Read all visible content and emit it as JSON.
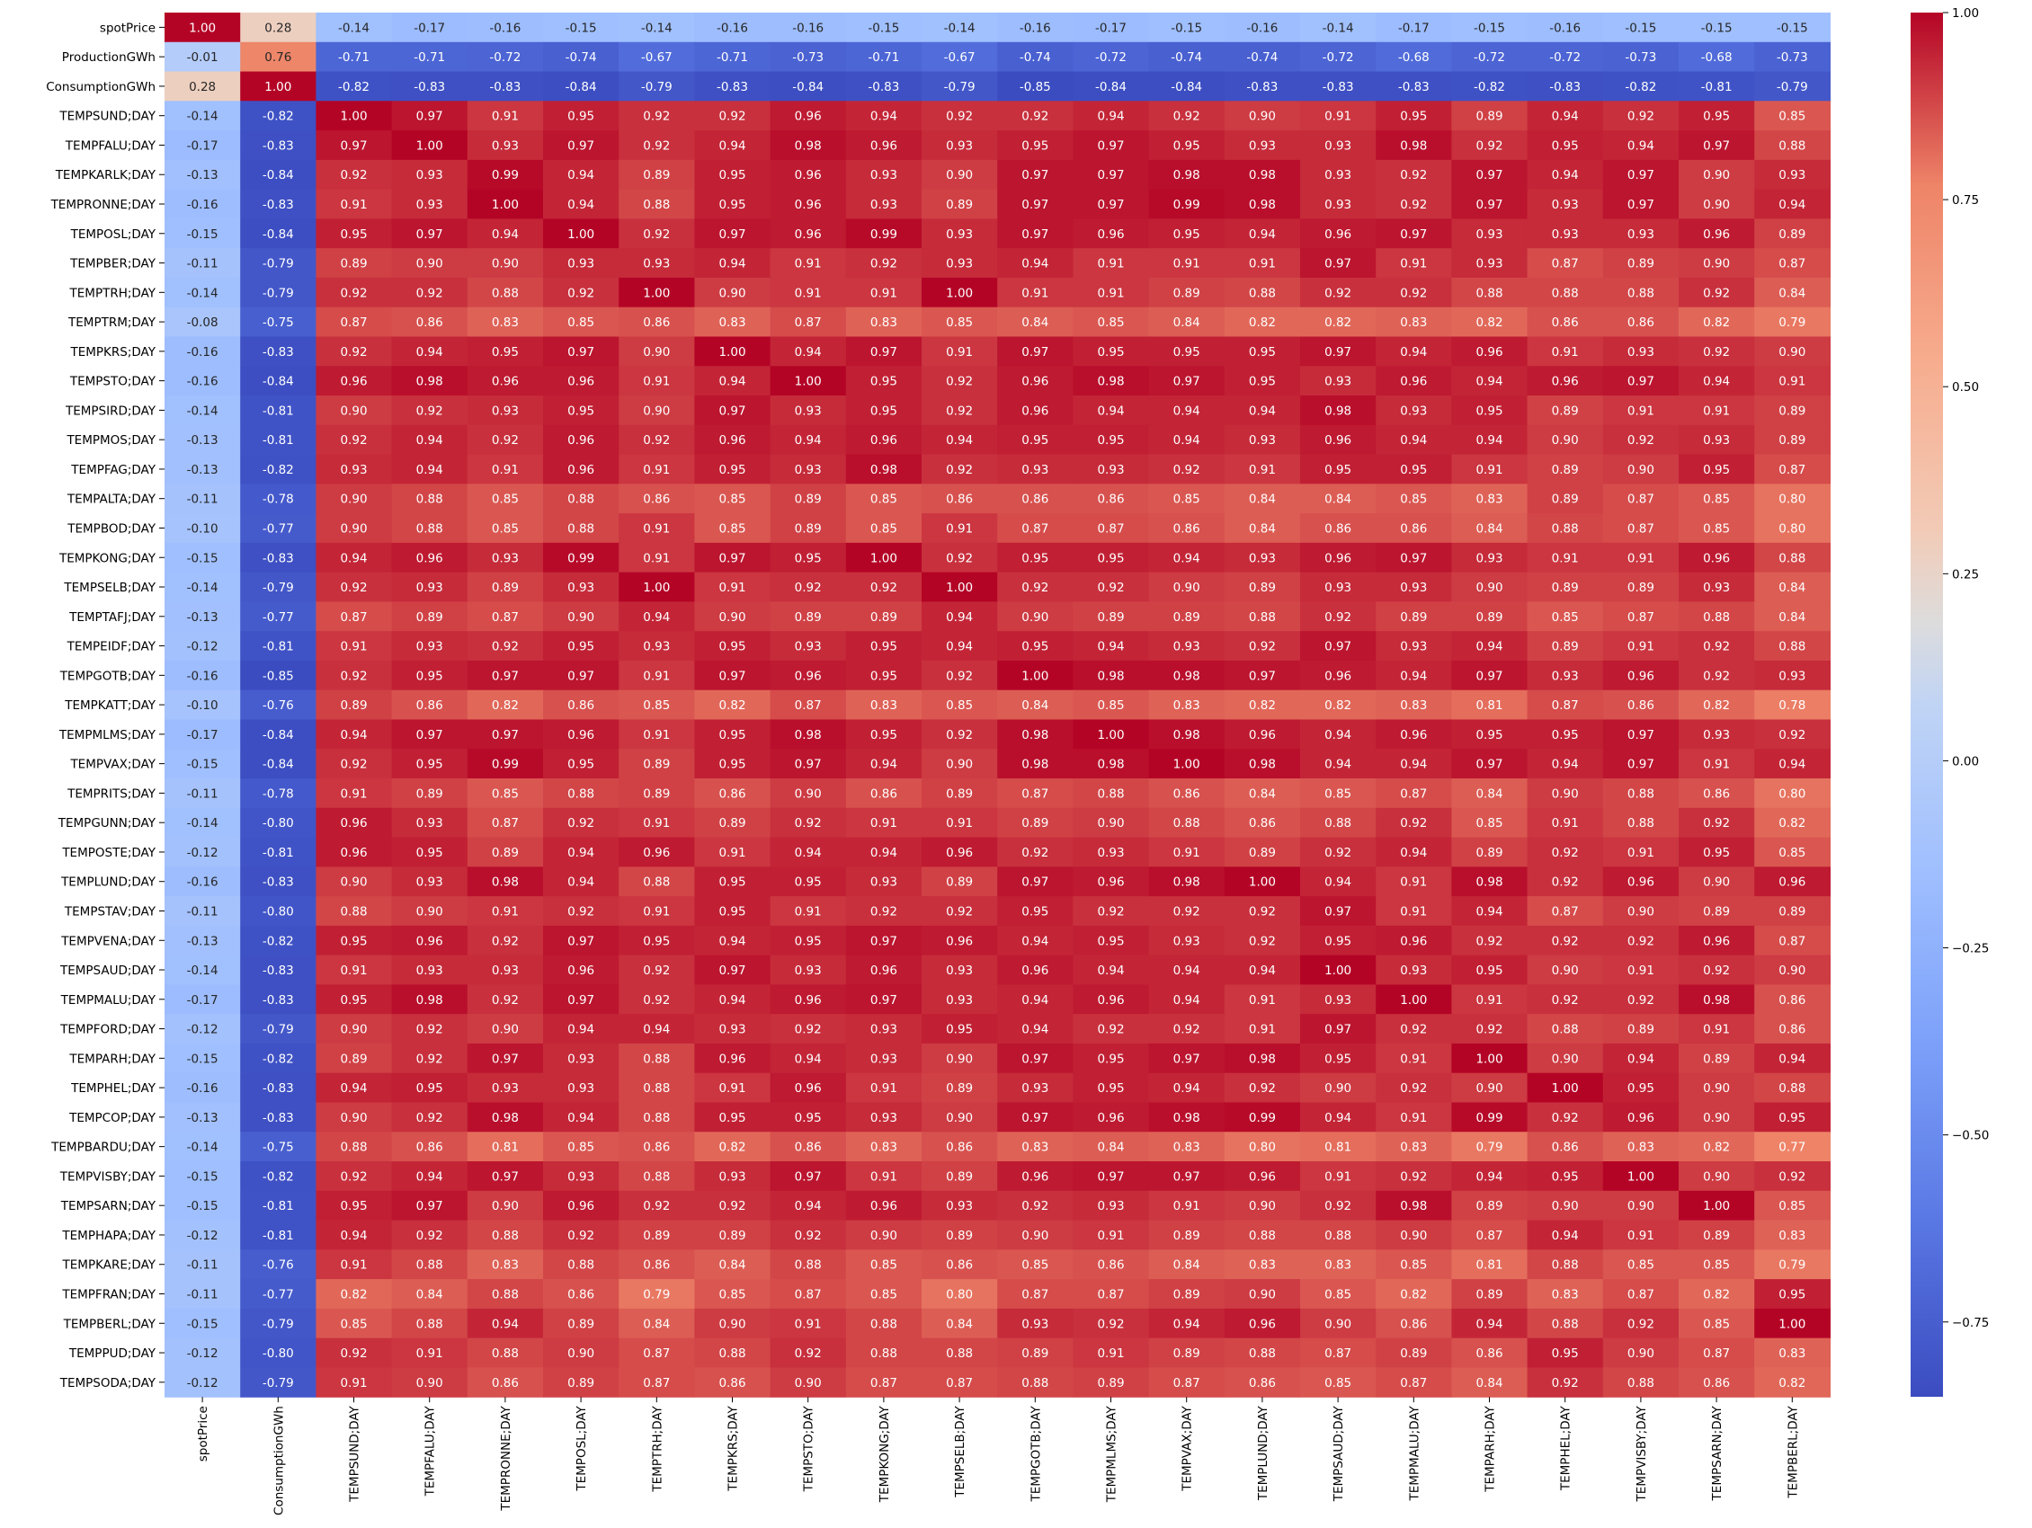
{
  "chart_data": {
    "type": "heatmap",
    "title": "",
    "xlabel": "",
    "ylabel": "",
    "colormap": "coolwarm",
    "vmin": -0.85,
    "vmax": 1.0,
    "colorbar_ticks": [
      1.0,
      0.75,
      0.5,
      0.25,
      0.0,
      -0.25,
      -0.5,
      -0.75
    ],
    "colorbar_tick_labels": [
      "1.00",
      "0.75",
      "0.50",
      "0.25",
      "0.00",
      "−0.25",
      "−0.50",
      "−0.75"
    ],
    "rows": [
      "spotPrice",
      "ProductionGWh",
      "ConsumptionGWh",
      "TEMPSUND;DAY",
      "TEMPFALU;DAY",
      "TEMPKARLK;DAY",
      "TEMPRONNE;DAY",
      "TEMPOSL;DAY",
      "TEMPBER;DAY",
      "TEMPTRH;DAY",
      "TEMPTRM;DAY",
      "TEMPKRS;DAY",
      "TEMPSTO;DAY",
      "TEMPSIRD;DAY",
      "TEMPMOS;DAY",
      "TEMPFAG;DAY",
      "TEMPALTA;DAY",
      "TEMPBOD;DAY",
      "TEMPKONG;DAY",
      "TEMPSELB;DAY",
      "TEMPTAFJ;DAY",
      "TEMPEIDF;DAY",
      "TEMPGOTB;DAY",
      "TEMPKATT;DAY",
      "TEMPMLMS;DAY",
      "TEMPVAX;DAY",
      "TEMPRITS;DAY",
      "TEMPGUNN;DAY",
      "TEMPOSTE;DAY",
      "TEMPLUND;DAY",
      "TEMPSTAV;DAY",
      "TEMPVENA;DAY",
      "TEMPSAUD;DAY",
      "TEMPMALU;DAY",
      "TEMPFORD;DAY",
      "TEMPARH;DAY",
      "TEMPHEL;DAY",
      "TEMPCOP;DAY",
      "TEMPBARDU;DAY",
      "TEMPVISBY;DAY",
      "TEMPSARN;DAY",
      "TEMPHAPA;DAY",
      "TEMPKARE;DAY",
      "TEMPFRAN;DAY",
      "TEMPBERL;DAY",
      "TEMPPUD;DAY",
      "TEMPSODA;DAY"
    ],
    "columns": [
      "spotPrice",
      "ConsumptionGWh",
      "TEMPSUND;DAY",
      "TEMPFALU;DAY",
      "TEMPRONNE;DAY",
      "TEMPOSL;DAY",
      "TEMPTRH;DAY",
      "TEMPKRS;DAY",
      "TEMPSTO;DAY",
      "TEMPKONG;DAY",
      "TEMPSELB;DAY",
      "TEMPGOTB;DAY",
      "TEMPMLMS;DAY",
      "TEMPVAX;DAY",
      "TEMPLUND;DAY",
      "TEMPSAUD;DAY",
      "TEMPMALU;DAY",
      "TEMPARH;DAY",
      "TEMPHEL;DAY",
      "TEMPVISBY;DAY",
      "TEMPSARN;DAY",
      "TEMPBERL;DAY"
    ],
    "values": [
      [
        1.0,
        0.28,
        -0.14,
        -0.17,
        -0.16,
        -0.15,
        -0.14,
        -0.16,
        -0.16,
        -0.15,
        -0.14,
        -0.16,
        -0.17,
        -0.15,
        -0.16,
        -0.14,
        -0.17,
        -0.15,
        -0.16,
        -0.15,
        -0.15,
        -0.15
      ],
      [
        -0.01,
        0.76,
        -0.71,
        -0.71,
        -0.72,
        -0.74,
        -0.67,
        -0.71,
        -0.73,
        -0.71,
        -0.67,
        -0.74,
        -0.72,
        -0.74,
        -0.74,
        -0.72,
        -0.68,
        -0.72,
        -0.72,
        -0.73,
        -0.68,
        -0.73
      ],
      [
        0.28,
        1.0,
        -0.82,
        -0.83,
        -0.83,
        -0.84,
        -0.79,
        -0.83,
        -0.84,
        -0.83,
        -0.79,
        -0.85,
        -0.84,
        -0.84,
        -0.83,
        -0.83,
        -0.83,
        -0.82,
        -0.83,
        -0.82,
        -0.81,
        -0.79
      ],
      [
        -0.14,
        -0.82,
        1.0,
        0.97,
        0.91,
        0.95,
        0.92,
        0.92,
        0.96,
        0.94,
        0.92,
        0.92,
        0.94,
        0.92,
        0.9,
        0.91,
        0.95,
        0.89,
        0.94,
        0.92,
        0.95,
        0.85
      ],
      [
        -0.17,
        -0.83,
        0.97,
        1.0,
        0.93,
        0.97,
        0.92,
        0.94,
        0.98,
        0.96,
        0.93,
        0.95,
        0.97,
        0.95,
        0.93,
        0.93,
        0.98,
        0.92,
        0.95,
        0.94,
        0.97,
        0.88
      ],
      [
        -0.13,
        -0.84,
        0.92,
        0.93,
        0.99,
        0.94,
        0.89,
        0.95,
        0.96,
        0.93,
        0.9,
        0.97,
        0.97,
        0.98,
        0.98,
        0.93,
        0.92,
        0.97,
        0.94,
        0.97,
        0.9,
        0.93
      ],
      [
        -0.16,
        -0.83,
        0.91,
        0.93,
        1.0,
        0.94,
        0.88,
        0.95,
        0.96,
        0.93,
        0.89,
        0.97,
        0.97,
        0.99,
        0.98,
        0.93,
        0.92,
        0.97,
        0.93,
        0.97,
        0.9,
        0.94
      ],
      [
        -0.15,
        -0.84,
        0.95,
        0.97,
        0.94,
        1.0,
        0.92,
        0.97,
        0.96,
        0.99,
        0.93,
        0.97,
        0.96,
        0.95,
        0.94,
        0.96,
        0.97,
        0.93,
        0.93,
        0.93,
        0.96,
        0.89
      ],
      [
        -0.11,
        -0.79,
        0.89,
        0.9,
        0.9,
        0.93,
        0.93,
        0.94,
        0.91,
        0.92,
        0.93,
        0.94,
        0.91,
        0.91,
        0.91,
        0.97,
        0.91,
        0.93,
        0.87,
        0.89,
        0.9,
        0.87
      ],
      [
        -0.14,
        -0.79,
        0.92,
        0.92,
        0.88,
        0.92,
        1.0,
        0.9,
        0.91,
        0.91,
        1.0,
        0.91,
        0.91,
        0.89,
        0.88,
        0.92,
        0.92,
        0.88,
        0.88,
        0.88,
        0.92,
        0.84
      ],
      [
        -0.08,
        -0.75,
        0.87,
        0.86,
        0.83,
        0.85,
        0.86,
        0.83,
        0.87,
        0.83,
        0.85,
        0.84,
        0.85,
        0.84,
        0.82,
        0.82,
        0.83,
        0.82,
        0.86,
        0.86,
        0.82,
        0.79
      ],
      [
        -0.16,
        -0.83,
        0.92,
        0.94,
        0.95,
        0.97,
        0.9,
        1.0,
        0.94,
        0.97,
        0.91,
        0.97,
        0.95,
        0.95,
        0.95,
        0.97,
        0.94,
        0.96,
        0.91,
        0.93,
        0.92,
        0.9
      ],
      [
        -0.16,
        -0.84,
        0.96,
        0.98,
        0.96,
        0.96,
        0.91,
        0.94,
        1.0,
        0.95,
        0.92,
        0.96,
        0.98,
        0.97,
        0.95,
        0.93,
        0.96,
        0.94,
        0.96,
        0.97,
        0.94,
        0.91
      ],
      [
        -0.14,
        -0.81,
        0.9,
        0.92,
        0.93,
        0.95,
        0.9,
        0.97,
        0.93,
        0.95,
        0.92,
        0.96,
        0.94,
        0.94,
        0.94,
        0.98,
        0.93,
        0.95,
        0.89,
        0.91,
        0.91,
        0.89
      ],
      [
        -0.13,
        -0.81,
        0.92,
        0.94,
        0.92,
        0.96,
        0.92,
        0.96,
        0.94,
        0.96,
        0.94,
        0.95,
        0.95,
        0.94,
        0.93,
        0.96,
        0.94,
        0.94,
        0.9,
        0.92,
        0.93,
        0.89
      ],
      [
        -0.13,
        -0.82,
        0.93,
        0.94,
        0.91,
        0.96,
        0.91,
        0.95,
        0.93,
        0.98,
        0.92,
        0.93,
        0.93,
        0.92,
        0.91,
        0.95,
        0.95,
        0.91,
        0.89,
        0.9,
        0.95,
        0.87
      ],
      [
        -0.11,
        -0.78,
        0.9,
        0.88,
        0.85,
        0.88,
        0.86,
        0.85,
        0.89,
        0.85,
        0.86,
        0.86,
        0.86,
        0.85,
        0.84,
        0.84,
        0.85,
        0.83,
        0.89,
        0.87,
        0.85,
        0.8
      ],
      [
        -0.1,
        -0.77,
        0.9,
        0.88,
        0.85,
        0.88,
        0.91,
        0.85,
        0.89,
        0.85,
        0.91,
        0.87,
        0.87,
        0.86,
        0.84,
        0.86,
        0.86,
        0.84,
        0.88,
        0.87,
        0.85,
        0.8
      ],
      [
        -0.15,
        -0.83,
        0.94,
        0.96,
        0.93,
        0.99,
        0.91,
        0.97,
        0.95,
        1.0,
        0.92,
        0.95,
        0.95,
        0.94,
        0.93,
        0.96,
        0.97,
        0.93,
        0.91,
        0.91,
        0.96,
        0.88
      ],
      [
        -0.14,
        -0.79,
        0.92,
        0.93,
        0.89,
        0.93,
        1.0,
        0.91,
        0.92,
        0.92,
        1.0,
        0.92,
        0.92,
        0.9,
        0.89,
        0.93,
        0.93,
        0.9,
        0.89,
        0.89,
        0.93,
        0.84
      ],
      [
        -0.13,
        -0.77,
        0.87,
        0.89,
        0.87,
        0.9,
        0.94,
        0.9,
        0.89,
        0.89,
        0.94,
        0.9,
        0.89,
        0.89,
        0.88,
        0.92,
        0.89,
        0.89,
        0.85,
        0.87,
        0.88,
        0.84
      ],
      [
        -0.12,
        -0.81,
        0.91,
        0.93,
        0.92,
        0.95,
        0.93,
        0.95,
        0.93,
        0.95,
        0.94,
        0.95,
        0.94,
        0.93,
        0.92,
        0.97,
        0.93,
        0.94,
        0.89,
        0.91,
        0.92,
        0.88
      ],
      [
        -0.16,
        -0.85,
        0.92,
        0.95,
        0.97,
        0.97,
        0.91,
        0.97,
        0.96,
        0.95,
        0.92,
        1.0,
        0.98,
        0.98,
        0.97,
        0.96,
        0.94,
        0.97,
        0.93,
        0.96,
        0.92,
        0.93
      ],
      [
        -0.1,
        -0.76,
        0.89,
        0.86,
        0.82,
        0.86,
        0.85,
        0.82,
        0.87,
        0.83,
        0.85,
        0.84,
        0.85,
        0.83,
        0.82,
        0.82,
        0.83,
        0.81,
        0.87,
        0.86,
        0.82,
        0.78
      ],
      [
        -0.17,
        -0.84,
        0.94,
        0.97,
        0.97,
        0.96,
        0.91,
        0.95,
        0.98,
        0.95,
        0.92,
        0.98,
        1.0,
        0.98,
        0.96,
        0.94,
        0.96,
        0.95,
        0.95,
        0.97,
        0.93,
        0.92
      ],
      [
        -0.15,
        -0.84,
        0.92,
        0.95,
        0.99,
        0.95,
        0.89,
        0.95,
        0.97,
        0.94,
        0.9,
        0.98,
        0.98,
        1.0,
        0.98,
        0.94,
        0.94,
        0.97,
        0.94,
        0.97,
        0.91,
        0.94
      ],
      [
        -0.11,
        -0.78,
        0.91,
        0.89,
        0.85,
        0.88,
        0.89,
        0.86,
        0.9,
        0.86,
        0.89,
        0.87,
        0.88,
        0.86,
        0.84,
        0.85,
        0.87,
        0.84,
        0.9,
        0.88,
        0.86,
        0.8
      ],
      [
        -0.14,
        -0.8,
        0.96,
        0.93,
        0.87,
        0.92,
        0.91,
        0.89,
        0.92,
        0.91,
        0.91,
        0.89,
        0.9,
        0.88,
        0.86,
        0.88,
        0.92,
        0.85,
        0.91,
        0.88,
        0.92,
        0.82
      ],
      [
        -0.12,
        -0.81,
        0.96,
        0.95,
        0.89,
        0.94,
        0.96,
        0.91,
        0.94,
        0.94,
        0.96,
        0.92,
        0.93,
        0.91,
        0.89,
        0.92,
        0.94,
        0.89,
        0.92,
        0.91,
        0.95,
        0.85
      ],
      [
        -0.16,
        -0.83,
        0.9,
        0.93,
        0.98,
        0.94,
        0.88,
        0.95,
        0.95,
        0.93,
        0.89,
        0.97,
        0.96,
        0.98,
        1.0,
        0.94,
        0.91,
        0.98,
        0.92,
        0.96,
        0.9,
        0.96
      ],
      [
        -0.11,
        -0.8,
        0.88,
        0.9,
        0.91,
        0.92,
        0.91,
        0.95,
        0.91,
        0.92,
        0.92,
        0.95,
        0.92,
        0.92,
        0.92,
        0.97,
        0.91,
        0.94,
        0.87,
        0.9,
        0.89,
        0.89
      ],
      [
        -0.13,
        -0.82,
        0.95,
        0.96,
        0.92,
        0.97,
        0.95,
        0.94,
        0.95,
        0.97,
        0.96,
        0.94,
        0.95,
        0.93,
        0.92,
        0.95,
        0.96,
        0.92,
        0.92,
        0.92,
        0.96,
        0.87
      ],
      [
        -0.14,
        -0.83,
        0.91,
        0.93,
        0.93,
        0.96,
        0.92,
        0.97,
        0.93,
        0.96,
        0.93,
        0.96,
        0.94,
        0.94,
        0.94,
        1.0,
        0.93,
        0.95,
        0.9,
        0.91,
        0.92,
        0.9
      ],
      [
        -0.17,
        -0.83,
        0.95,
        0.98,
        0.92,
        0.97,
        0.92,
        0.94,
        0.96,
        0.97,
        0.93,
        0.94,
        0.96,
        0.94,
        0.91,
        0.93,
        1.0,
        0.91,
        0.92,
        0.92,
        0.98,
        0.86
      ],
      [
        -0.12,
        -0.79,
        0.9,
        0.92,
        0.9,
        0.94,
        0.94,
        0.93,
        0.92,
        0.93,
        0.95,
        0.94,
        0.92,
        0.92,
        0.91,
        0.97,
        0.92,
        0.92,
        0.88,
        0.89,
        0.91,
        0.86
      ],
      [
        -0.15,
        -0.82,
        0.89,
        0.92,
        0.97,
        0.93,
        0.88,
        0.96,
        0.94,
        0.93,
        0.9,
        0.97,
        0.95,
        0.97,
        0.98,
        0.95,
        0.91,
        1.0,
        0.9,
        0.94,
        0.89,
        0.94
      ],
      [
        -0.16,
        -0.83,
        0.94,
        0.95,
        0.93,
        0.93,
        0.88,
        0.91,
        0.96,
        0.91,
        0.89,
        0.93,
        0.95,
        0.94,
        0.92,
        0.9,
        0.92,
        0.9,
        1.0,
        0.95,
        0.9,
        0.88
      ],
      [
        -0.13,
        -0.83,
        0.9,
        0.92,
        0.98,
        0.94,
        0.88,
        0.95,
        0.95,
        0.93,
        0.9,
        0.97,
        0.96,
        0.98,
        0.99,
        0.94,
        0.91,
        0.99,
        0.92,
        0.96,
        0.9,
        0.95
      ],
      [
        -0.14,
        -0.75,
        0.88,
        0.86,
        0.81,
        0.85,
        0.86,
        0.82,
        0.86,
        0.83,
        0.86,
        0.83,
        0.84,
        0.83,
        0.8,
        0.81,
        0.83,
        0.79,
        0.86,
        0.83,
        0.82,
        0.77
      ],
      [
        -0.15,
        -0.82,
        0.92,
        0.94,
        0.97,
        0.93,
        0.88,
        0.93,
        0.97,
        0.91,
        0.89,
        0.96,
        0.97,
        0.97,
        0.96,
        0.91,
        0.92,
        0.94,
        0.95,
        1.0,
        0.9,
        0.92
      ],
      [
        -0.15,
        -0.81,
        0.95,
        0.97,
        0.9,
        0.96,
        0.92,
        0.92,
        0.94,
        0.96,
        0.93,
        0.92,
        0.93,
        0.91,
        0.9,
        0.92,
        0.98,
        0.89,
        0.9,
        0.9,
        1.0,
        0.85
      ],
      [
        -0.12,
        -0.81,
        0.94,
        0.92,
        0.88,
        0.92,
        0.89,
        0.89,
        0.92,
        0.9,
        0.89,
        0.9,
        0.91,
        0.89,
        0.88,
        0.88,
        0.9,
        0.87,
        0.94,
        0.91,
        0.89,
        0.83
      ],
      [
        -0.11,
        -0.76,
        0.91,
        0.88,
        0.83,
        0.88,
        0.86,
        0.84,
        0.88,
        0.85,
        0.86,
        0.85,
        0.86,
        0.84,
        0.83,
        0.83,
        0.85,
        0.81,
        0.88,
        0.85,
        0.85,
        0.79
      ],
      [
        -0.11,
        -0.77,
        0.82,
        0.84,
        0.88,
        0.86,
        0.79,
        0.85,
        0.87,
        0.85,
        0.8,
        0.87,
        0.87,
        0.89,
        0.9,
        0.85,
        0.82,
        0.89,
        0.83,
        0.87,
        0.82,
        0.95
      ],
      [
        -0.15,
        -0.79,
        0.85,
        0.88,
        0.94,
        0.89,
        0.84,
        0.9,
        0.91,
        0.88,
        0.84,
        0.93,
        0.92,
        0.94,
        0.96,
        0.9,
        0.86,
        0.94,
        0.88,
        0.92,
        0.85,
        1.0
      ],
      [
        -0.12,
        -0.8,
        0.92,
        0.91,
        0.88,
        0.9,
        0.87,
        0.88,
        0.92,
        0.88,
        0.88,
        0.89,
        0.91,
        0.89,
        0.88,
        0.87,
        0.89,
        0.86,
        0.95,
        0.9,
        0.87,
        0.83
      ],
      [
        -0.12,
        -0.79,
        0.91,
        0.9,
        0.86,
        0.89,
        0.87,
        0.86,
        0.9,
        0.87,
        0.87,
        0.88,
        0.89,
        0.87,
        0.86,
        0.85,
        0.87,
        0.84,
        0.92,
        0.88,
        0.86,
        0.82
      ]
    ]
  }
}
